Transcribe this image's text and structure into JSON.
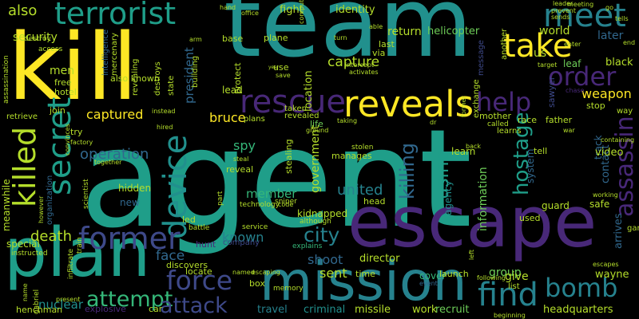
{
  "words": [
    "agent",
    "team",
    "kill",
    "escape",
    "mission",
    "plan",
    "reveals",
    "rescue",
    "take",
    "secret",
    "device",
    "former",
    "force",
    "find",
    "killed",
    "meet",
    "order",
    "help",
    "bomb",
    "terrorist",
    "captured",
    "attempt",
    "attack",
    "operation",
    "spy",
    "bruce",
    "city",
    "assassin",
    "hostage",
    "killing",
    "using",
    "united",
    "member",
    "government",
    "death",
    "shoot",
    "sent",
    "known",
    "face",
    "director",
    "cover",
    "nuclear",
    "capture",
    "identity",
    "fight",
    "return",
    "helicopter",
    "also",
    "security",
    "men",
    "president",
    "weapon",
    "later",
    "world",
    "us",
    "leaf",
    "black",
    "message",
    "information",
    "contact",
    "track",
    "group",
    "give",
    "wayne",
    "headquarters",
    "missile",
    "work",
    "recruit",
    "travel",
    "criminal",
    "company",
    "memory",
    "explains",
    "location",
    "agency",
    "launch",
    "event",
    "video",
    "system",
    "guard",
    "safe",
    "game",
    "arrives",
    "hidden",
    "new",
    "special",
    "henchman",
    "explosive",
    "car",
    "hunt",
    "locate",
    "discovers",
    "named",
    "escaping",
    "box",
    "life",
    "time",
    "manages",
    "head",
    "used",
    "stop",
    "race",
    "tell",
    "father",
    "mother",
    "sawyer",
    "chase",
    "way",
    "free",
    "hotel",
    "join",
    "try",
    "factory",
    "also known",
    "meanwhile",
    "organization",
    "retrieve",
    "assassination",
    "destroy",
    "access",
    "intelligence",
    "mercenary",
    "revealing",
    "destroys",
    "state",
    "building",
    "protect",
    "plane",
    "use",
    "save",
    "year",
    "base",
    "arm",
    "office",
    "hand",
    "lead",
    "called",
    "learns",
    "sends",
    "leader",
    "last",
    "via",
    "computer",
    "intercept",
    "activates",
    "exchange",
    "another",
    "former",
    "convinces",
    "battle",
    "gabriel",
    "infiltrate",
    "train",
    "led",
    "kidnapped",
    "although",
    "service",
    "technology",
    "sniper",
    "stolen",
    "taking",
    "taken",
    "revealed",
    "plans",
    "ground",
    "dr",
    "back",
    "learn",
    "meeting",
    "prevent",
    "target",
    "instead",
    "instructed",
    "however",
    "scientist",
    "together",
    "part",
    "code",
    "stealing",
    "steal",
    "reveal",
    "escapes",
    "war",
    "working",
    "containing",
    "list",
    "following",
    "left",
    "present",
    "name",
    "hired",
    "able",
    "turn",
    "enter",
    "go",
    "tells",
    "end",
    "beginning"
  ]
}
